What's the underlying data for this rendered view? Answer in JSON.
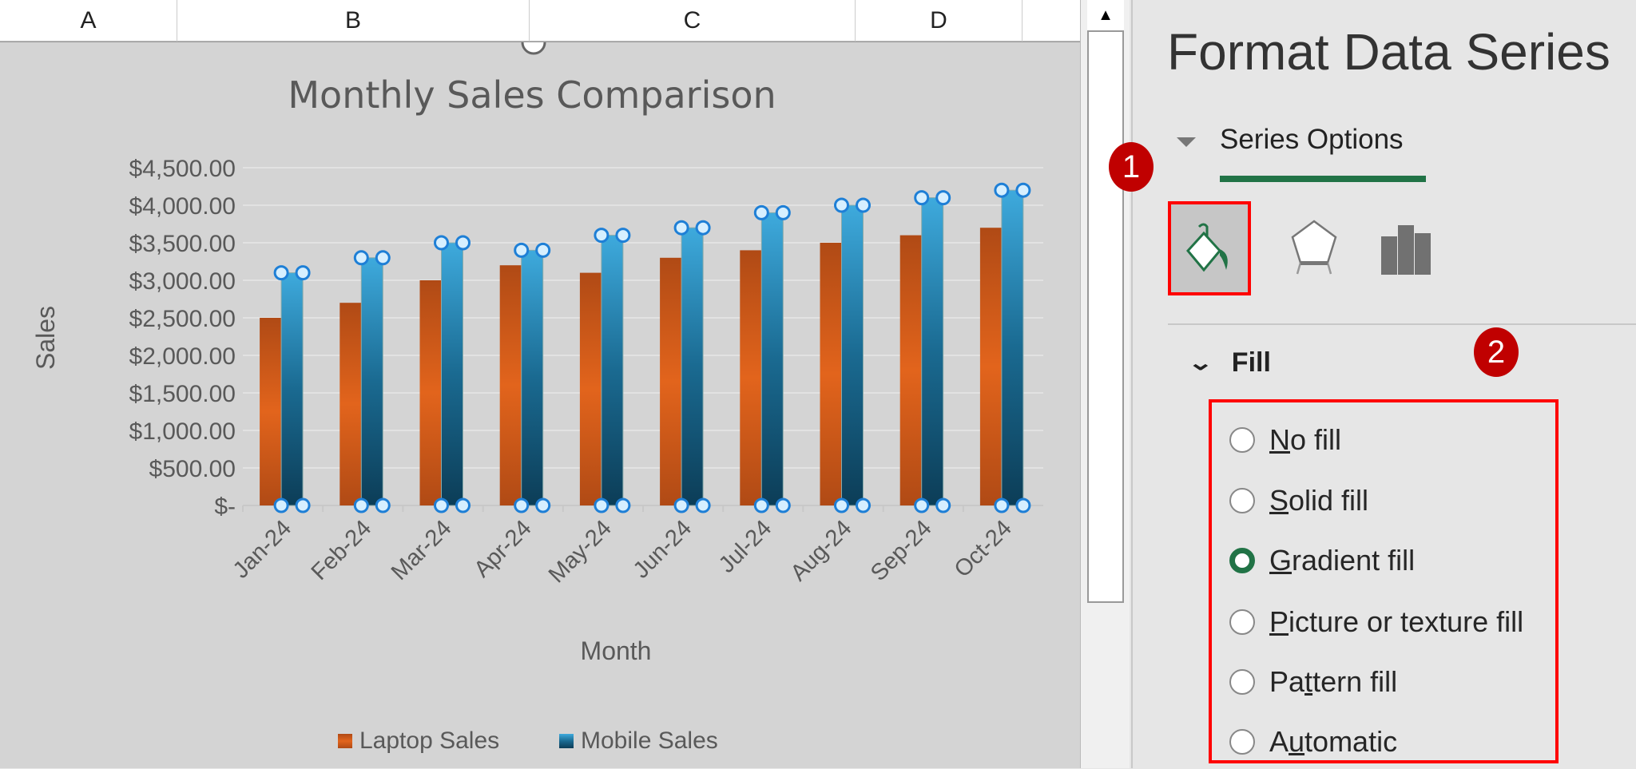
{
  "columns": [
    "A",
    "B",
    "C",
    "D"
  ],
  "chart_data": {
    "type": "bar",
    "title": "Monthly Sales Comparison",
    "xlabel": "Month",
    "ylabel": "Sales",
    "categories": [
      "Jan-24",
      "Feb-24",
      "Mar-24",
      "Apr-24",
      "May-24",
      "Jun-24",
      "Jul-24",
      "Aug-24",
      "Sep-24",
      "Oct-24"
    ],
    "series": [
      {
        "name": "Laptop Sales",
        "values": [
          2500,
          2700,
          3000,
          3200,
          3100,
          3300,
          3400,
          3500,
          3600,
          3700
        ],
        "color": "#e0621c"
      },
      {
        "name": "Mobile Sales",
        "values": [
          3100,
          3300,
          3500,
          3400,
          3600,
          3700,
          3900,
          4000,
          4100,
          4200
        ],
        "color": "#3aa6d8"
      }
    ],
    "ylim": [
      0,
      4500
    ],
    "yticks": [
      "$-",
      "$500.00",
      "$1,000.00",
      "$1,500.00",
      "$2,000.00",
      "$2,500.00",
      "$3,000.00",
      "$3,500.00",
      "$4,000.00",
      "$4,500.00"
    ],
    "grid": true,
    "legend": "bottom",
    "selected_series": "Mobile Sales"
  },
  "panel": {
    "title": "Format Data Series",
    "section": "Series Options",
    "icons": [
      "fill-line-icon",
      "effects-pentagon-icon",
      "series-options-bars-icon"
    ],
    "fill_header": "Fill",
    "badges": [
      "1",
      "2"
    ],
    "options": [
      {
        "pre": "",
        "key": "N",
        "post": "o fill",
        "selected": false
      },
      {
        "pre": "",
        "key": "S",
        "post": "olid fill",
        "selected": false
      },
      {
        "pre": "",
        "key": "G",
        "post": "radient fill",
        "selected": true
      },
      {
        "pre": "",
        "key": "P",
        "post": "icture or texture fill",
        "selected": false
      },
      {
        "pre": "Pa",
        "key": "t",
        "post": "tern fill",
        "selected": false
      },
      {
        "pre": "A",
        "key": "u",
        "post": "tomatic",
        "selected": false
      }
    ],
    "accent": "#217346"
  }
}
